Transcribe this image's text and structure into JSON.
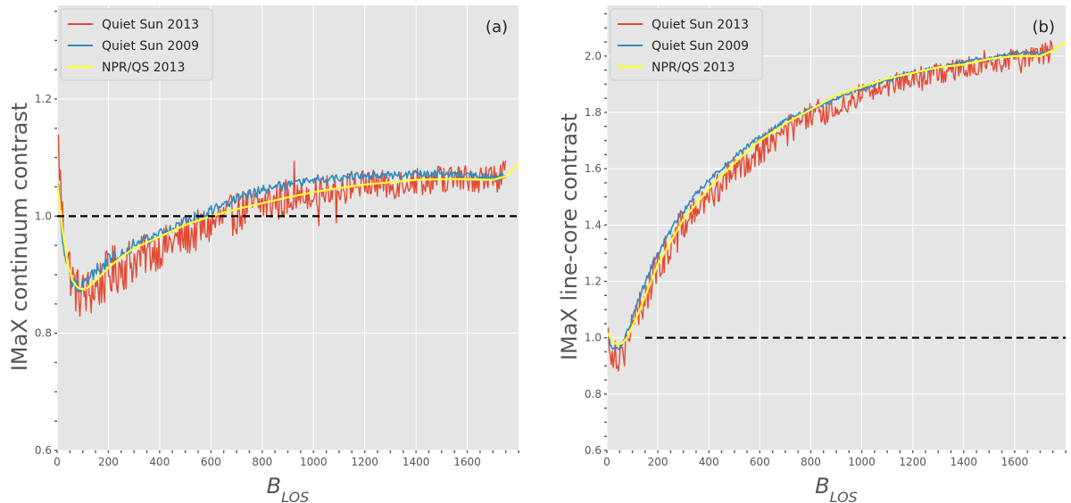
{
  "chart_data": [
    {
      "type": "line",
      "panel_label": "(a)",
      "xlabel": "B",
      "xlabel_sub": "LOS",
      "ylabel": "IMaX continuum contrast",
      "xlim": [
        0,
        1800
      ],
      "ylim": [
        0.6,
        1.36
      ],
      "xticks": [
        0,
        200,
        400,
        600,
        800,
        1000,
        1200,
        1400,
        1600
      ],
      "yticks": [
        0.6,
        0.8,
        1.0,
        1.2
      ],
      "grid": true,
      "legend_position": "top-left",
      "reference_line_y": 1.0,
      "series": [
        {
          "name": "Quiet Sun 2013",
          "color": "#e24a33",
          "x": [
            5,
            20,
            40,
            60,
            80,
            100,
            130,
            160,
            200,
            250,
            300,
            350,
            400,
            450,
            500,
            550,
            600,
            650,
            700,
            750,
            800,
            850,
            900,
            950,
            1000,
            1050,
            1100,
            1150,
            1200,
            1250,
            1300,
            1350,
            1400,
            1450,
            1500,
            1550,
            1600,
            1650,
            1700,
            1750
          ],
          "values": [
            1.12,
            1.0,
            0.93,
            0.89,
            0.87,
            0.865,
            0.87,
            0.88,
            0.9,
            0.915,
            0.925,
            0.935,
            0.945,
            0.955,
            0.965,
            0.975,
            0.985,
            0.995,
            1.005,
            1.015,
            1.02,
            1.025,
            1.03,
            1.035,
            1.04,
            1.045,
            1.05,
            1.052,
            1.055,
            1.055,
            1.05,
            1.06,
            1.06,
            1.062,
            1.064,
            1.064,
            1.065,
            1.065,
            1.064,
            1.07
          ],
          "scatter": 0.045
        },
        {
          "name": "Quiet Sun 2009",
          "color": "#348abd",
          "x": [
            5,
            20,
            40,
            60,
            80,
            100,
            130,
            160,
            200,
            250,
            300,
            350,
            400,
            450,
            500,
            550,
            600,
            650,
            700,
            750,
            800,
            850,
            900,
            950,
            1000,
            1050,
            1100,
            1150,
            1200,
            1250,
            1300,
            1350,
            1400,
            1450,
            1500,
            1550,
            1600,
            1650,
            1700,
            1750
          ],
          "values": [
            1.05,
            0.96,
            0.91,
            0.885,
            0.88,
            0.885,
            0.895,
            0.91,
            0.925,
            0.94,
            0.95,
            0.96,
            0.97,
            0.98,
            0.99,
            1.0,
            1.01,
            1.02,
            1.03,
            1.035,
            1.045,
            1.05,
            1.055,
            1.058,
            1.06,
            1.063,
            1.065,
            1.067,
            1.068,
            1.07,
            1.07,
            1.071,
            1.072,
            1.072,
            1.073,
            1.072,
            1.07,
            1.068,
            1.065,
            1.07
          ],
          "scatter": 0.012
        },
        {
          "name": "NPR/QS 2013",
          "color": "#ffff33",
          "x": [
            0,
            20,
            40,
            60,
            80,
            100,
            120,
            150,
            200,
            250,
            300,
            400,
            500,
            600,
            700,
            800,
            900,
            1000,
            1100,
            1200,
            1300,
            1400,
            1500,
            1600,
            1700,
            1750,
            1800
          ],
          "values": [
            1.06,
            0.98,
            0.92,
            0.89,
            0.878,
            0.875,
            0.878,
            0.89,
            0.912,
            0.93,
            0.945,
            0.965,
            0.985,
            1.0,
            1.012,
            1.022,
            1.032,
            1.041,
            1.048,
            1.054,
            1.058,
            1.062,
            1.063,
            1.063,
            1.062,
            1.068,
            1.09
          ],
          "scatter": 0
        }
      ]
    },
    {
      "type": "line",
      "panel_label": "(b)",
      "xlabel": "B",
      "xlabel_sub": "LOS",
      "ylabel": "IMaX line-core contrast",
      "xlim": [
        0,
        1800
      ],
      "ylim": [
        0.6,
        2.18
      ],
      "xticks": [
        0,
        200,
        400,
        600,
        800,
        1000,
        1200,
        1400,
        1600
      ],
      "yticks": [
        0.6,
        0.8,
        1.0,
        1.2,
        1.4,
        1.6,
        1.8,
        2.0
      ],
      "grid": true,
      "legend_position": "top-left",
      "reference_line_y": 1.0,
      "series": [
        {
          "name": "Quiet Sun 2013",
          "color": "#e24a33",
          "x": [
            5,
            20,
            40,
            60,
            80,
            100,
            130,
            160,
            200,
            250,
            300,
            350,
            400,
            450,
            500,
            550,
            600,
            650,
            700,
            750,
            800,
            850,
            900,
            950,
            1000,
            1050,
            1100,
            1150,
            1200,
            1250,
            1300,
            1350,
            1400,
            1450,
            1500,
            1550,
            1600,
            1650,
            1700,
            1750
          ],
          "values": [
            1.0,
            0.96,
            0.94,
            0.95,
            0.99,
            1.03,
            1.1,
            1.17,
            1.25,
            1.33,
            1.4,
            1.45,
            1.5,
            1.55,
            1.59,
            1.63,
            1.67,
            1.7,
            1.73,
            1.76,
            1.78,
            1.8,
            1.82,
            1.84,
            1.86,
            1.88,
            1.89,
            1.91,
            1.92,
            1.93,
            1.94,
            1.95,
            1.96,
            1.97,
            1.98,
            1.98,
            1.99,
            2.0,
            2.0,
            2.02
          ],
          "scatter": 0.07
        },
        {
          "name": "Quiet Sun 2009",
          "color": "#348abd",
          "x": [
            5,
            20,
            40,
            60,
            80,
            100,
            130,
            160,
            200,
            250,
            300,
            350,
            400,
            450,
            500,
            550,
            600,
            650,
            700,
            750,
            800,
            850,
            900,
            950,
            1000,
            1050,
            1100,
            1150,
            1200,
            1250,
            1300,
            1350,
            1400,
            1450,
            1500,
            1550,
            1600,
            1650,
            1700,
            1750
          ],
          "values": [
            1.0,
            0.97,
            0.96,
            0.98,
            1.02,
            1.07,
            1.15,
            1.22,
            1.3,
            1.38,
            1.45,
            1.51,
            1.56,
            1.6,
            1.64,
            1.68,
            1.71,
            1.74,
            1.77,
            1.79,
            1.81,
            1.83,
            1.85,
            1.87,
            1.88,
            1.9,
            1.91,
            1.93,
            1.94,
            1.95,
            1.96,
            1.97,
            1.98,
            1.99,
            1.99,
            2.0,
            2.01,
            2.01,
            2.01,
            2.02
          ],
          "scatter": 0.012
        },
        {
          "name": "NPR/QS 2013",
          "color": "#ffff33",
          "x": [
            0,
            20,
            40,
            60,
            80,
            100,
            130,
            160,
            200,
            250,
            300,
            400,
            500,
            600,
            700,
            800,
            900,
            1000,
            1100,
            1200,
            1300,
            1400,
            1500,
            1600,
            1700,
            1750,
            1800
          ],
          "values": [
            1.02,
            0.99,
            0.975,
            0.98,
            1.0,
            1.04,
            1.1,
            1.17,
            1.26,
            1.34,
            1.42,
            1.53,
            1.62,
            1.7,
            1.76,
            1.81,
            1.86,
            1.89,
            1.92,
            1.94,
            1.96,
            1.97,
            1.99,
            2.0,
            2.0,
            2.02,
            2.05
          ],
          "scatter": 0
        }
      ]
    }
  ]
}
